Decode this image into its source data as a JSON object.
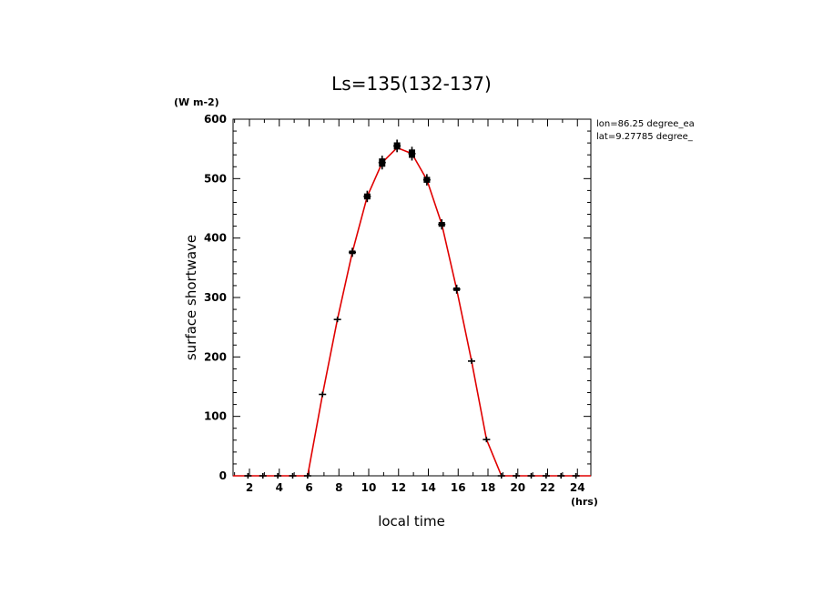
{
  "chart_data": {
    "type": "line",
    "title": "Ls=135(132-137)",
    "xlabel": "local time",
    "ylabel": "surface shortwave",
    "x_unit": "(hrs)",
    "y_unit": "(W m-2)",
    "xlim": [
      0.9,
      24.9
    ],
    "ylim": [
      0,
      600
    ],
    "x_ticks": [
      2,
      4,
      6,
      8,
      10,
      12,
      14,
      16,
      18,
      20,
      22,
      24
    ],
    "y_ticks": [
      0,
      100,
      200,
      300,
      400,
      500,
      600
    ],
    "grid": false,
    "legend": null,
    "info": [
      "lon=86.25 degree_ea",
      "lat=9.27785 degree_"
    ],
    "series": [
      {
        "style": "line",
        "color": "#e00000",
        "x": [
          0.9,
          1.9,
          2.9,
          3.9,
          4.9,
          5.9,
          6.9,
          7.9,
          8.9,
          9.9,
          10.9,
          11.9,
          12.9,
          13.9,
          14.9,
          15.9,
          16.9,
          17.9,
          18.9,
          19.9,
          20.9,
          21.9,
          22.9,
          23.9,
          24.9
        ],
        "y": [
          0,
          0,
          0,
          0,
          0,
          0,
          137,
          263,
          376,
          470,
          527,
          552,
          542,
          498,
          423,
          314,
          193,
          61,
          0,
          0,
          0,
          0,
          0,
          0,
          0
        ]
      },
      {
        "style": "markers",
        "color": "#000000",
        "marker": "plus",
        "x": [
          1.9,
          2.9,
          3.9,
          4.9,
          5.9,
          6.9,
          7.9,
          8.9,
          9.9,
          10.9,
          11.9,
          12.9,
          13.9,
          14.9,
          15.9,
          16.9,
          17.9,
          18.9,
          19.9,
          20.9,
          21.9,
          22.9,
          23.9
        ],
        "y": [
          0,
          0,
          0,
          0,
          0,
          137,
          263,
          376,
          470,
          527,
          555,
          542,
          498,
          423,
          314,
          193,
          61,
          0,
          0,
          0,
          0,
          0,
          0
        ],
        "spread": [
          0,
          0,
          0,
          0,
          0,
          0,
          0,
          3,
          5,
          7,
          6,
          7,
          5,
          4,
          3,
          0,
          0,
          0,
          0,
          0,
          0,
          0,
          0
        ]
      }
    ]
  }
}
